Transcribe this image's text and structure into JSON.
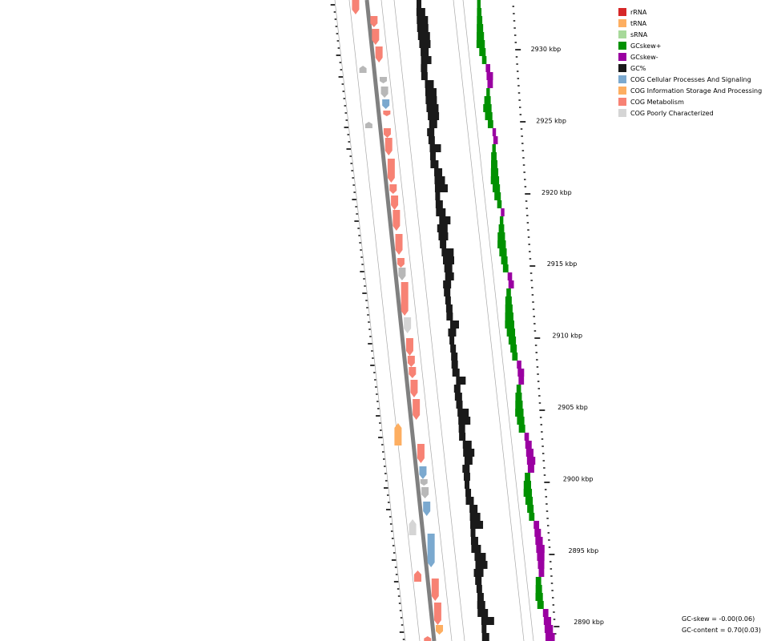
{
  "map": {
    "tick_labels": [
      "2930 kbp",
      "2925 kbp",
      "2920 kbp",
      "2915 kbp",
      "2910 kbp",
      "2905 kbp",
      "2900 kbp",
      "2895 kbp",
      "2890 kbp"
    ],
    "colors": {
      "backbone": "#808080",
      "ring_line": "#a9a9a9",
      "gc_content": "#1a1a1a",
      "gc_skew_pos": "#009100",
      "gc_skew_neg": "#9a00a1",
      "cog_cellular": "#7ba9cf",
      "cog_information": "#fdae61",
      "cog_metabolism": "#f78274",
      "cog_poorly": "#d5d5d5",
      "trna": "#fdae61",
      "unknown": "#b8b8b8"
    }
  },
  "legend": [
    {
      "label": "rRNA",
      "color": "#d62728"
    },
    {
      "label": "tRNA",
      "color": "#fdae61"
    },
    {
      "label": "sRNA",
      "color": "#a7d99a"
    },
    {
      "label": "GCskew+",
      "color": "#009100"
    },
    {
      "label": "GCskew-",
      "color": "#9a00a1"
    },
    {
      "label": "GC%",
      "color": "#1a1a1a"
    },
    {
      "label": "COG Cellular Processes And Signaling",
      "color": "#7ba9cf"
    },
    {
      "label": "COG Information Storage And Processing",
      "color": "#fdae61"
    },
    {
      "label": "COG Metabolism",
      "color": "#f78274"
    },
    {
      "label": "COG Poorly Characterized",
      "color": "#d5d5d5"
    }
  ],
  "stats": {
    "gc_skew": "GC-skew = -0.00(0.06)",
    "gc_content": "GC-content = 0.70(0.03)"
  }
}
